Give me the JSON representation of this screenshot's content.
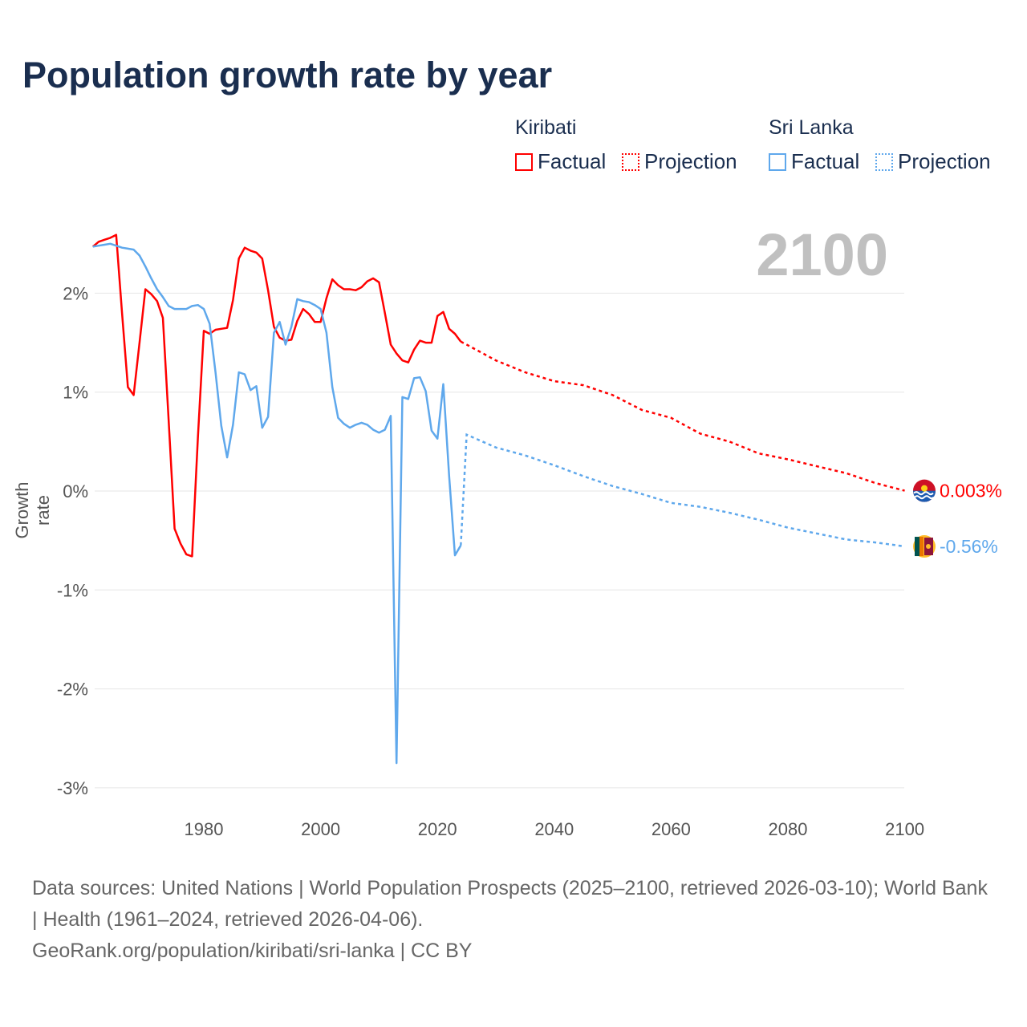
{
  "title": "Population growth rate by year",
  "legend": {
    "groups": [
      {
        "name": "Kiribati",
        "factual": "Factual",
        "projection": "Projection",
        "color": "#ff0000"
      },
      {
        "name": "Sri Lanka",
        "factual": "Factual",
        "projection": "Projection",
        "color": "#5fa8ec"
      }
    ]
  },
  "footer": {
    "sources": "Data sources: United Nations | World Population Prospects (2025–2100, retrieved 2026-03-10); World Bank | Health (1961–2024, retrieved 2026-04-06).",
    "link": "GeoRank.org/population/kiribati/sri-lanka | CC BY"
  },
  "chart_data": {
    "type": "line",
    "title": "Population growth rate by year",
    "ylabel": "Growth rate",
    "xlabel": "",
    "year_label": "2100",
    "xlim": [
      1961,
      2100
    ],
    "ylim": [
      -3.2,
      2.7
    ],
    "x_ticks": [
      1980,
      2000,
      2020,
      2040,
      2060,
      2080,
      2100
    ],
    "y_ticks": [
      {
        "v": 2,
        "label": "2%"
      },
      {
        "v": 1,
        "label": "1%"
      },
      {
        "v": 0,
        "label": "0%"
      },
      {
        "v": -1,
        "label": "-1%"
      },
      {
        "v": -2,
        "label": "-2%"
      },
      {
        "v": -3,
        "label": "-3%"
      }
    ],
    "grid": true,
    "series": [
      {
        "name": "Kiribati",
        "color": "#ff0000",
        "end_label": "0.003%",
        "factual": {
          "start_year": 1961,
          "values": [
            2.47,
            2.52,
            2.54,
            2.56,
            2.59,
            1.8,
            1.05,
            0.97,
            1.5,
            2.04,
            1.99,
            1.92,
            1.75,
            0.7,
            -0.38,
            -0.53,
            -0.64,
            -0.66,
            0.55,
            1.62,
            1.59,
            1.63,
            1.64,
            1.65,
            1.93,
            2.35,
            2.46,
            2.43,
            2.41,
            2.35,
            2.03,
            1.66,
            1.55,
            1.52,
            1.53,
            1.72,
            1.84,
            1.79,
            1.71,
            1.71,
            1.95,
            2.14,
            2.08,
            2.04,
            2.04,
            2.03,
            2.06,
            2.12,
            2.15,
            2.11,
            1.8,
            1.48,
            1.39,
            1.32,
            1.3,
            1.43,
            1.52,
            1.5,
            1.5,
            1.77,
            1.81,
            1.64,
            1.59,
            1.51
          ]
        },
        "projection": {
          "years": [
            2024,
            2025,
            2030,
            2035,
            2040,
            2045,
            2050,
            2055,
            2060,
            2065,
            2070,
            2075,
            2080,
            2085,
            2090,
            2095,
            2100
          ],
          "values": [
            1.51,
            1.48,
            1.32,
            1.2,
            1.11,
            1.07,
            0.97,
            0.82,
            0.74,
            0.58,
            0.5,
            0.38,
            0.32,
            0.25,
            0.18,
            0.08,
            0.003
          ]
        }
      },
      {
        "name": "Sri Lanka",
        "color": "#5fa8ec",
        "end_label": "-0.56%",
        "factual": {
          "start_year": 1961,
          "values": [
            2.47,
            2.48,
            2.49,
            2.5,
            2.48,
            2.46,
            2.45,
            2.44,
            2.38,
            2.27,
            2.15,
            2.04,
            1.96,
            1.87,
            1.84,
            1.84,
            1.84,
            1.87,
            1.88,
            1.84,
            1.69,
            1.2,
            0.66,
            0.34,
            0.67,
            1.2,
            1.18,
            1.02,
            1.06,
            0.64,
            0.75,
            1.6,
            1.71,
            1.48,
            1.66,
            1.94,
            1.92,
            1.91,
            1.88,
            1.84,
            1.6,
            1.05,
            0.74,
            0.68,
            0.64,
            0.67,
            0.69,
            0.67,
            0.62,
            0.59,
            0.62,
            0.76,
            -2.75,
            0.95,
            0.93,
            1.14,
            1.15,
            1.01,
            0.61,
            0.53,
            1.08,
            0.15,
            -0.65,
            -0.55
          ]
        },
        "projection": {
          "years": [
            2024,
            2025,
            2030,
            2035,
            2040,
            2045,
            2050,
            2055,
            2060,
            2065,
            2070,
            2075,
            2080,
            2085,
            2090,
            2095,
            2100
          ],
          "values": [
            -0.55,
            0.57,
            0.44,
            0.36,
            0.26,
            0.15,
            0.05,
            -0.03,
            -0.12,
            -0.16,
            -0.22,
            -0.29,
            -0.37,
            -0.43,
            -0.49,
            -0.52,
            -0.56
          ]
        }
      }
    ]
  }
}
